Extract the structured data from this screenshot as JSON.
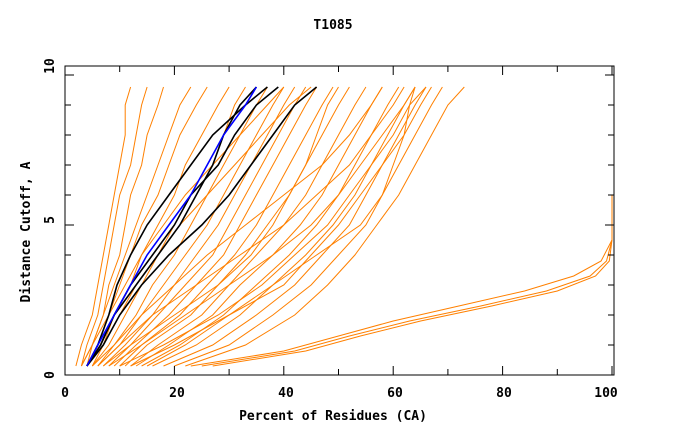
{
  "chart_data": {
    "type": "line",
    "title": "T1085",
    "xlabel": "Percent of Residues (CA)",
    "ylabel": "Distance Cutoff, A",
    "xlim": [
      0,
      100
    ],
    "ylim": [
      0,
      10
    ],
    "x_ticks": [
      "0",
      "20",
      "40",
      "60",
      "80",
      "100"
    ],
    "y_ticks": [
      "0",
      "5",
      "10"
    ],
    "grid": false,
    "colors": {
      "models": "#ff8000",
      "highlight": "#000000",
      "reference": "#0000ff"
    },
    "cutoffs": [
      0.3,
      1,
      2,
      3,
      4,
      5,
      6,
      7,
      8,
      9,
      9.6
    ],
    "orange_series": [
      [
        2,
        3,
        5,
        6,
        7,
        8,
        9,
        10,
        11,
        11,
        12
      ],
      [
        3,
        4,
        6,
        7,
        8,
        9,
        10,
        12,
        13,
        14,
        15
      ],
      [
        3,
        5,
        7,
        8,
        10,
        11,
        12,
        14,
        15,
        17,
        18
      ],
      [
        4,
        5,
        7,
        9,
        11,
        13,
        15,
        17,
        19,
        21,
        23
      ],
      [
        4,
        6,
        8,
        10,
        12,
        14,
        17,
        19,
        21,
        24,
        26
      ],
      [
        5,
        7,
        9,
        12,
        14,
        17,
        20,
        22,
        25,
        28,
        30
      ],
      [
        5,
        8,
        11,
        14,
        17,
        20,
        23,
        26,
        29,
        31,
        33
      ],
      [
        6,
        9,
        13,
        16,
        20,
        23,
        26,
        29,
        32,
        35,
        37
      ],
      [
        6,
        10,
        14,
        18,
        22,
        26,
        29,
        32,
        35,
        38,
        40
      ],
      [
        7,
        11,
        16,
        20,
        24,
        28,
        31,
        34,
        37,
        40,
        42
      ],
      [
        8,
        12,
        17,
        22,
        27,
        30,
        33,
        36,
        39,
        42,
        44
      ],
      [
        9,
        13,
        19,
        24,
        29,
        32,
        35,
        38,
        41,
        44,
        46
      ],
      [
        10,
        14,
        21,
        26,
        31,
        35,
        38,
        41,
        44,
        47,
        49
      ],
      [
        11,
        15,
        23,
        28,
        33,
        37,
        41,
        44,
        47,
        50,
        52
      ],
      [
        12,
        17,
        25,
        30,
        35,
        40,
        44,
        47,
        50,
        53,
        55
      ],
      [
        13,
        19,
        27,
        32,
        38,
        43,
        47,
        50,
        53,
        56,
        58
      ],
      [
        14,
        21,
        29,
        35,
        41,
        46,
        50,
        53,
        56,
        59,
        61
      ],
      [
        16,
        24,
        32,
        38,
        44,
        49,
        53,
        56,
        59,
        62,
        64
      ],
      [
        18,
        27,
        35,
        42,
        47,
        52,
        55,
        58,
        61,
        64,
        66
      ],
      [
        20,
        30,
        38,
        45,
        50,
        55,
        58,
        61,
        64,
        67,
        69
      ],
      [
        22,
        33,
        42,
        48,
        53,
        57,
        61,
        64,
        67,
        70,
        73
      ],
      [
        12,
        20,
        30,
        40,
        45,
        50,
        54,
        58,
        62,
        65,
        67
      ],
      [
        8,
        14,
        22,
        30,
        38,
        45,
        50,
        54,
        58,
        62,
        64
      ],
      [
        6,
        10,
        16,
        24,
        32,
        40,
        46,
        52,
        56,
        60,
        62
      ],
      [
        5,
        9,
        14,
        20,
        26,
        33,
        40,
        47,
        52,
        56,
        58
      ],
      [
        7,
        12,
        20,
        28,
        34,
        38,
        41,
        44,
        46,
        48,
        50
      ],
      [
        4,
        7,
        10,
        13,
        17,
        21,
        26,
        31,
        36,
        41,
        45
      ],
      [
        3,
        5,
        8,
        11,
        14,
        18,
        22,
        27,
        32,
        37,
        40
      ],
      [
        10,
        18,
        28,
        36,
        42,
        48,
        52,
        56,
        60,
        63,
        66
      ],
      [
        15,
        22,
        30,
        38,
        46,
        54,
        58,
        60,
        62,
        63,
        64
      ]
    ],
    "lower_cutoffs": [
      0.3,
      0.8,
      1.3,
      1.8,
      2.3,
      2.8,
      3.3,
      3.8,
      4.5,
      6
    ],
    "lower_orange_series": [
      [
        23,
        40,
        50,
        60,
        72,
        84,
        93,
        98,
        100,
        100
      ],
      [
        25,
        42,
        52,
        63,
        76,
        88,
        96,
        99,
        100,
        100
      ],
      [
        27,
        44,
        54,
        65,
        78,
        90,
        97,
        99.5,
        100,
        100
      ]
    ],
    "black_series": [
      [
        4,
        6,
        8,
        9.5,
        12,
        15,
        19,
        23,
        27,
        33,
        37
      ],
      [
        4,
        6.5,
        9,
        13,
        17,
        21,
        24,
        27,
        29,
        32,
        35
      ],
      [
        4,
        7,
        10,
        14,
        19,
        25,
        30,
        34,
        38,
        42,
        46
      ],
      [
        4,
        6.5,
        9,
        12,
        16,
        20,
        23,
        28,
        31,
        35,
        39
      ]
    ],
    "blue_series": [
      [
        4,
        6,
        9,
        12,
        15,
        19,
        23,
        26,
        29,
        33,
        35
      ]
    ]
  }
}
